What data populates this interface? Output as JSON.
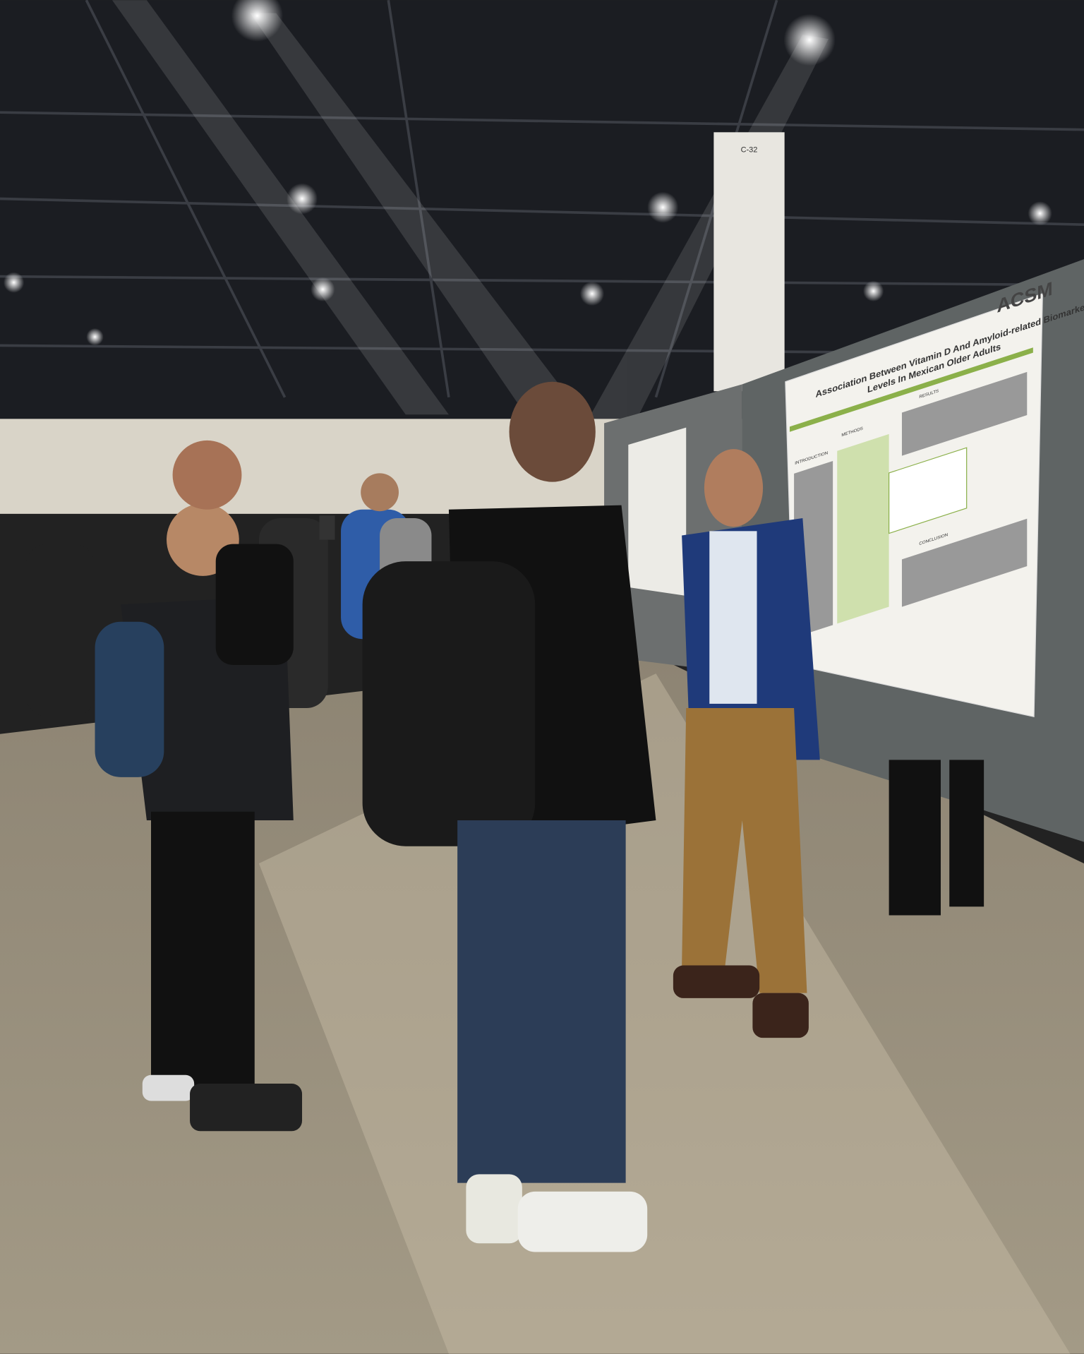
{
  "scene": {
    "pillar_label": "C-32",
    "poster": {
      "title": "Association Between Vitamin D And Amyloid-related Biomarkers",
      "title_line2": "Levels In Mexican Older Adults",
      "logo": "ACSM",
      "sections": [
        "INTRODUCTION",
        "METHODS",
        "RESULTS",
        "CONCLUSION"
      ]
    }
  }
}
